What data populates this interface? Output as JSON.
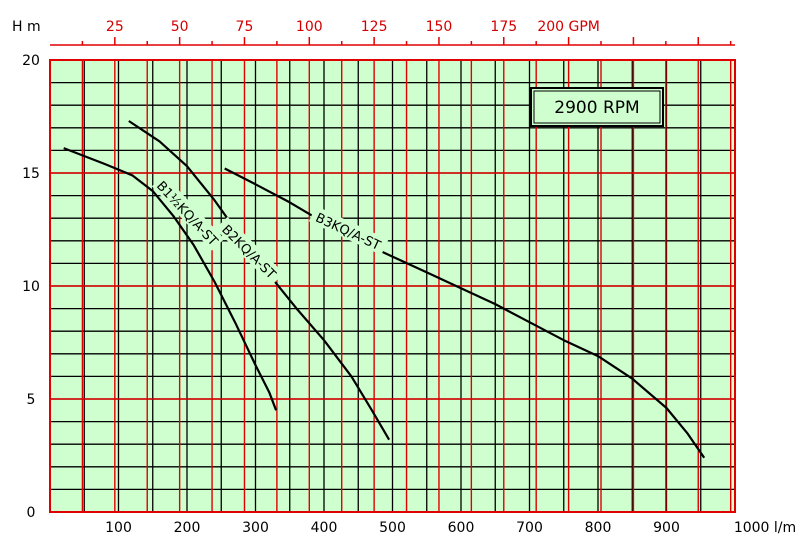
{
  "chart_data": {
    "type": "line",
    "title": "",
    "xlabel": "l/m",
    "ylabel": "H m",
    "x2label": "GPM",
    "xlim": [
      0,
      1000
    ],
    "ylim": [
      0,
      20
    ],
    "x_ticks": [
      100,
      200,
      300,
      400,
      500,
      600,
      700,
      800,
      900,
      1000
    ],
    "y_ticks": [
      0,
      5,
      10,
      15,
      20
    ],
    "x2_ticks": [
      25,
      50,
      75,
      100,
      125,
      150,
      175,
      200
    ],
    "grid": true,
    "annotation": "2900 RPM",
    "series": [
      {
        "name": "B1½KQ/A-ST",
        "label_at": [
          200,
          13.2
        ],
        "label_angle": 47,
        "points": [
          [
            20,
            16.1
          ],
          [
            80,
            15.4
          ],
          [
            120,
            14.9
          ],
          [
            150,
            14.2
          ],
          [
            180,
            13.1
          ],
          [
            210,
            11.8
          ],
          [
            240,
            10.2
          ],
          [
            270,
            8.4
          ],
          [
            300,
            6.5
          ],
          [
            320,
            5.3
          ],
          [
            330,
            4.5
          ]
        ]
      },
      {
        "name": "B2KQ/A-ST",
        "label_at": [
          290,
          11.5
        ],
        "label_angle": 45,
        "points": [
          [
            115,
            17.3
          ],
          [
            160,
            16.4
          ],
          [
            200,
            15.3
          ],
          [
            240,
            13.8
          ],
          [
            280,
            12.1
          ],
          [
            320,
            10.5
          ],
          [
            360,
            9.0
          ],
          [
            400,
            7.6
          ],
          [
            440,
            6.0
          ],
          [
            470,
            4.5
          ],
          [
            495,
            3.2
          ]
        ]
      },
      {
        "name": "B3KQ/A-ST",
        "label_at": [
          435,
          12.4
        ],
        "label_angle": 25,
        "points": [
          [
            255,
            15.2
          ],
          [
            300,
            14.5
          ],
          [
            350,
            13.7
          ],
          [
            400,
            12.8
          ],
          [
            450,
            12.0
          ],
          [
            500,
            11.3
          ],
          [
            550,
            10.6
          ],
          [
            600,
            9.9
          ],
          [
            650,
            9.2
          ],
          [
            700,
            8.4
          ],
          [
            750,
            7.6
          ],
          [
            800,
            6.9
          ],
          [
            850,
            5.9
          ],
          [
            900,
            4.6
          ],
          [
            930,
            3.5
          ],
          [
            955,
            2.4
          ]
        ]
      }
    ]
  }
}
